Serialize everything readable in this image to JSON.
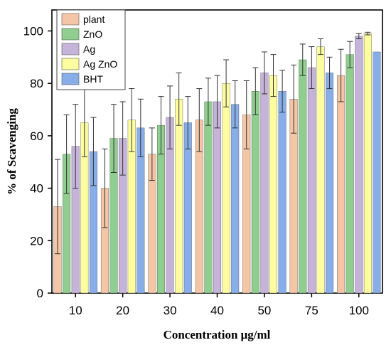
{
  "chart_data": {
    "type": "bar",
    "title": "",
    "xlabel": "Concentration μg/ml",
    "ylabel": "% of Scavenging",
    "categories": [
      "10",
      "20",
      "30",
      "40",
      "50",
      "75",
      "100"
    ],
    "ylim": [
      0,
      108
    ],
    "yticks": [
      0,
      20,
      40,
      60,
      80,
      100
    ],
    "grid": false,
    "legend_position": "top-left",
    "series": [
      {
        "name": "plant",
        "color": "#f5c6a5",
        "values": [
          33,
          40,
          53,
          66,
          68,
          74,
          83
        ],
        "errors": [
          18,
          15,
          10,
          12,
          13,
          13,
          10
        ]
      },
      {
        "name": "ZnO",
        "color": "#8fce8f",
        "values": [
          53,
          59,
          64,
          73,
          77,
          89,
          91
        ],
        "errors": [
          15,
          13,
          11,
          9,
          9,
          6,
          5
        ]
      },
      {
        "name": "Ag",
        "color": "#c5b3d9",
        "values": [
          56,
          59,
          67,
          73,
          84,
          86,
          98
        ],
        "errors": [
          16,
          14,
          12,
          10,
          8,
          8,
          1
        ]
      },
      {
        "name": "Ag ZnO",
        "color": "#fdfd9f",
        "values": [
          65,
          66,
          74,
          80,
          83,
          94,
          99
        ],
        "errors": [
          13,
          12,
          10,
          9,
          8,
          3,
          0.5
        ]
      },
      {
        "name": "BHT",
        "color": "#87aee8",
        "values": [
          54,
          63,
          65,
          72,
          77,
          84,
          92
        ],
        "errors": [
          13,
          11,
          10,
          9,
          8,
          6,
          0
        ]
      }
    ]
  }
}
